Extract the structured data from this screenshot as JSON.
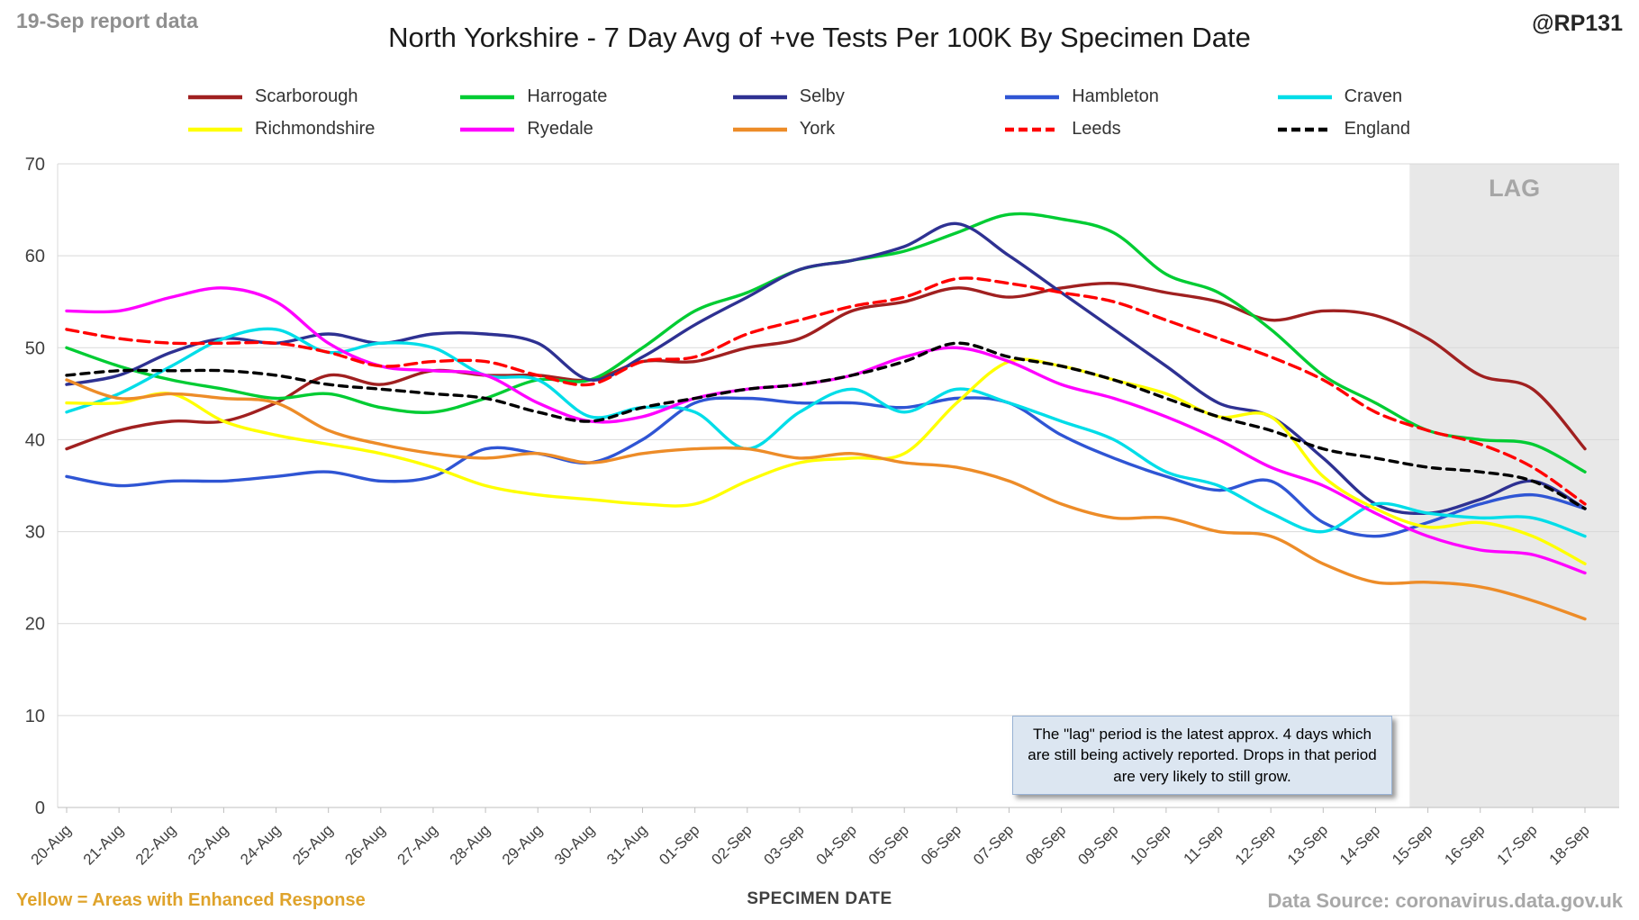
{
  "header": {
    "report_label": "19-Sep report data",
    "title": "North Yorkshire - 7 Day Avg of +ve Tests Per 100K By Specimen Date",
    "handle": "@RP131"
  },
  "annotation": {
    "text": "The \"lag\" period is the latest approx. 4 days which are still being actively reported. Drops in that period are very likely to still grow."
  },
  "footer": {
    "enhanced_note": "Yellow = Areas with Enhanced Response",
    "xaxis_title": "SPECIMEN DATE",
    "data_source": "Data Source: coronavirus.data.gov.uk"
  },
  "chart_data": {
    "type": "line",
    "title": "North Yorkshire - 7 Day Avg of +ve Tests Per 100K By Specimen Date",
    "xlabel": "SPECIMEN DATE",
    "ylabel": "",
    "ylim": [
      0,
      70
    ],
    "yticks": [
      0,
      10,
      20,
      30,
      40,
      50,
      60,
      70
    ],
    "grid": true,
    "legend_position": "top",
    "lag_region": {
      "start_index": 25.65,
      "label": "LAG",
      "fill": "#e8e8e8",
      "label_color": "#a6a6a6"
    },
    "x": [
      "20-Aug",
      "21-Aug",
      "22-Aug",
      "23-Aug",
      "24-Aug",
      "25-Aug",
      "26-Aug",
      "27-Aug",
      "28-Aug",
      "29-Aug",
      "30-Aug",
      "31-Aug",
      "01-Sep",
      "02-Sep",
      "03-Sep",
      "04-Sep",
      "05-Sep",
      "06-Sep",
      "07-Sep",
      "08-Sep",
      "09-Sep",
      "10-Sep",
      "11-Sep",
      "12-Sep",
      "13-Sep",
      "14-Sep",
      "15-Sep",
      "16-Sep",
      "17-Sep",
      "18-Sep"
    ],
    "series": [
      {
        "name": "Scarborough",
        "color": "#a02020",
        "dash": null,
        "values": [
          39,
          41,
          42,
          42,
          44,
          47,
          46,
          47.5,
          47,
          47,
          46.5,
          48.5,
          48.5,
          50,
          51,
          54,
          55,
          56.5,
          55.5,
          56.5,
          57,
          56,
          55,
          53,
          54,
          53.5,
          51,
          47,
          45.5,
          39
        ]
      },
      {
        "name": "Harrogate",
        "color": "#00cc33",
        "dash": null,
        "values": [
          50,
          48,
          46.5,
          45.5,
          44.5,
          45,
          43.5,
          43,
          44.5,
          46.5,
          46.5,
          50,
          54,
          56,
          58.5,
          59.5,
          60.5,
          62.5,
          64.5,
          64,
          62.5,
          58,
          56,
          52,
          47,
          44,
          41,
          40,
          39.5,
          36.5
        ]
      },
      {
        "name": "Selby",
        "color": "#2e3192",
        "dash": null,
        "values": [
          46,
          47,
          49.5,
          51,
          50.5,
          51.5,
          50.5,
          51.5,
          51.5,
          50.5,
          46.5,
          49,
          52.5,
          55.5,
          58.5,
          59.5,
          61,
          63.5,
          60,
          56,
          52,
          48,
          44,
          42.5,
          38,
          33,
          32,
          33.5,
          35.5,
          32.5
        ]
      },
      {
        "name": "Hambleton",
        "color": "#2f55d4",
        "dash": null,
        "values": [
          36,
          35,
          35.5,
          35.5,
          36,
          36.5,
          35.5,
          36,
          39,
          38.5,
          37.5,
          40,
          44,
          44.5,
          44,
          44,
          43.5,
          44.5,
          44,
          40.5,
          38,
          36,
          34.5,
          35.5,
          31,
          29.5,
          31,
          33,
          34,
          32.5
        ]
      },
      {
        "name": "Craven",
        "color": "#00dde8",
        "dash": null,
        "values": [
          43,
          45,
          48,
          51,
          52,
          49.5,
          50.5,
          50,
          47,
          46.5,
          42.5,
          43.5,
          43,
          39,
          43,
          45.5,
          43,
          45.5,
          44,
          42,
          40,
          36.5,
          35,
          32,
          30,
          33,
          32,
          31.5,
          31.5,
          29.5
        ]
      },
      {
        "name": "Richmondshire",
        "color": "#ffff00",
        "dash": null,
        "values": [
          44,
          44,
          45,
          42,
          40.5,
          39.5,
          38.5,
          37,
          35,
          34,
          33.5,
          33,
          33,
          35.5,
          37.5,
          38,
          38.5,
          44,
          48.5,
          48,
          46.5,
          45,
          42.5,
          42.5,
          36,
          32.5,
          30.5,
          31,
          29.5,
          26.5
        ]
      },
      {
        "name": "Ryedale",
        "color": "#ff00ff",
        "dash": null,
        "values": [
          54,
          54,
          55.5,
          56.5,
          55,
          50.5,
          48,
          47.5,
          47,
          44,
          42,
          42.5,
          44.5,
          45.5,
          46,
          47,
          49,
          50,
          48.5,
          46,
          44.5,
          42.5,
          40,
          37,
          35,
          32,
          29.5,
          28,
          27.5,
          25.5
        ]
      },
      {
        "name": "York",
        "color": "#ed8c28",
        "dash": null,
        "values": [
          46.5,
          44.5,
          45,
          44.5,
          44,
          41,
          39.5,
          38.5,
          38,
          38.5,
          37.5,
          38.5,
          39,
          39,
          38,
          38.5,
          37.5,
          37,
          35.5,
          33,
          31.5,
          31.5,
          30,
          29.5,
          26.5,
          24.5,
          24.5,
          24,
          22.5,
          20.5
        ]
      },
      {
        "name": "Leeds",
        "color": "#ff0000",
        "dash": [
          13,
          7
        ],
        "values": [
          52,
          51,
          50.5,
          50.5,
          50.5,
          49.5,
          48,
          48.5,
          48.5,
          47,
          46,
          48.5,
          49,
          51.5,
          53,
          54.5,
          55.5,
          57.5,
          57,
          56,
          55,
          53,
          51,
          49,
          46.5,
          43,
          41,
          39.5,
          37,
          33
        ]
      },
      {
        "name": "England",
        "color": "#000000",
        "dash": [
          9,
          7
        ],
        "values": [
          47,
          47.5,
          47.5,
          47.5,
          47,
          46,
          45.5,
          45,
          44.5,
          43,
          42,
          43.5,
          44.5,
          45.5,
          46,
          47,
          48.5,
          50.5,
          49,
          48,
          46.5,
          44.5,
          42.5,
          41,
          39,
          38,
          37,
          36.5,
          35.5,
          32.5
        ]
      }
    ]
  }
}
